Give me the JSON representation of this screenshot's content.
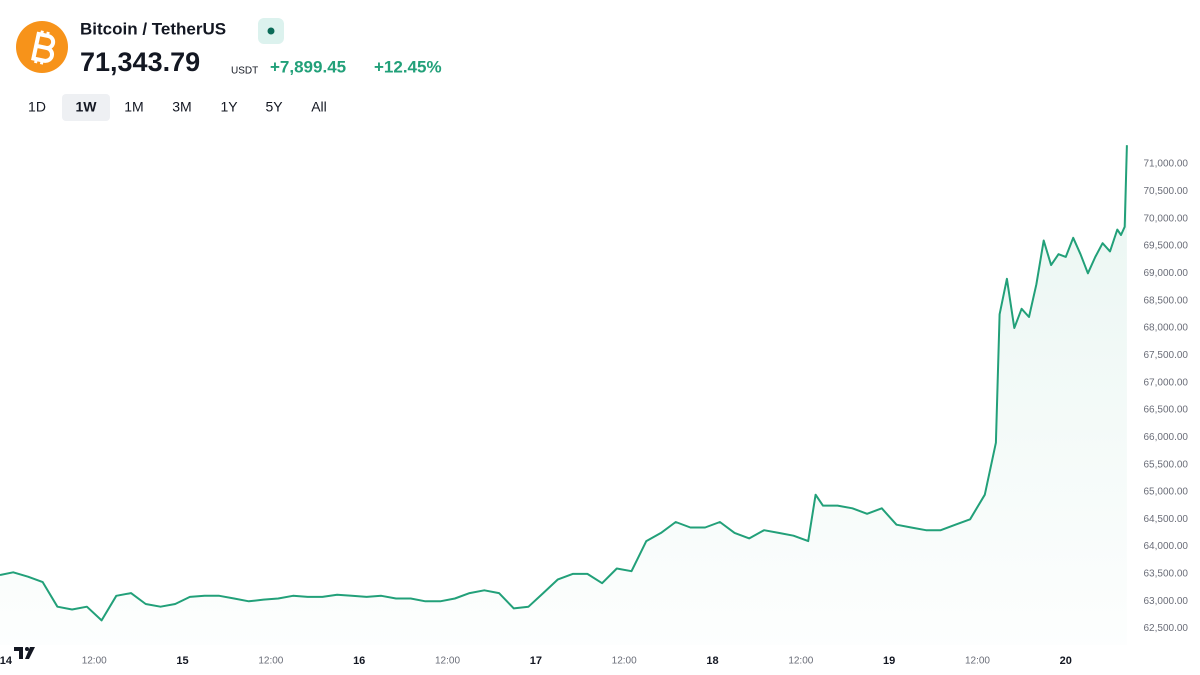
{
  "header": {
    "symbol": "Bitcoin / TetherUS",
    "price": "71,343.79",
    "currency": "USDT",
    "change": "+7,899.45",
    "change_percent": "+12.45%",
    "timeframes": [
      "1D",
      "1W",
      "1M",
      "3M",
      "1Y",
      "5Y",
      "All"
    ],
    "selected_timeframe": 1
  },
  "chart_data": {
    "type": "area",
    "color": "#22a079",
    "x": [
      -0.8,
      1,
      3,
      5,
      7,
      9,
      11,
      13,
      15,
      17,
      19,
      21,
      23,
      25,
      27,
      29,
      31,
      33,
      35,
      37,
      39,
      41,
      43,
      45,
      47,
      49,
      51,
      53,
      55,
      57,
      59,
      61,
      63,
      65,
      67,
      69,
      71,
      73,
      75,
      77,
      79,
      81,
      83,
      85,
      87,
      89,
      91,
      93,
      95,
      97,
      99,
      101,
      103,
      105,
      107,
      109,
      110,
      111,
      113,
      115,
      117,
      119,
      121,
      123,
      125,
      127,
      129,
      131,
      133,
      134.5,
      135,
      136,
      137,
      138,
      139,
      140,
      141,
      142,
      143,
      144,
      145,
      146,
      147,
      148,
      149,
      150,
      151,
      151.5,
      152,
      152.3
    ],
    "values": [
      63480,
      63530,
      63450,
      63350,
      62900,
      62850,
      62900,
      62650,
      63100,
      63150,
      62950,
      62900,
      62950,
      63080,
      63100,
      63100,
      63050,
      63000,
      63030,
      63050,
      63100,
      63080,
      63080,
      63120,
      63100,
      63080,
      63100,
      63050,
      63050,
      63000,
      63000,
      63050,
      63150,
      63200,
      63150,
      62870,
      62900,
      63150,
      63400,
      63500,
      63500,
      63330,
      63600,
      63550,
      64100,
      64250,
      64450,
      64350,
      64350,
      64450,
      64250,
      64150,
      64300,
      64250,
      64200,
      64100,
      64950,
      64750,
      64750,
      64700,
      64600,
      64700,
      64400,
      64350,
      64300,
      64300,
      64400,
      64500,
      64950,
      65900,
      68250,
      68900,
      68000,
      68350,
      68200,
      68800,
      69600,
      69150,
      69350,
      69300,
      69650,
      69350,
      69000,
      69300,
      69550,
      69400,
      69800,
      69700,
      69850,
      71343.79
    ],
    "xlim": [
      -0.8,
      153.4
    ],
    "xticks": [
      {
        "value": 0,
        "label": "14"
      },
      {
        "value": 12,
        "label": "12:00"
      },
      {
        "value": 24,
        "label": "15"
      },
      {
        "value": 36,
        "label": "12:00"
      },
      {
        "value": 48,
        "label": "16"
      },
      {
        "value": 60,
        "label": "12:00"
      },
      {
        "value": 72,
        "label": "17"
      },
      {
        "value": 84,
        "label": "12:00"
      },
      {
        "value": 96,
        "label": "18"
      },
      {
        "value": 108,
        "label": "12:00"
      },
      {
        "value": 120,
        "label": "19"
      },
      {
        "value": 132,
        "label": "12:00"
      },
      {
        "value": 144,
        "label": "20"
      }
    ],
    "ylim": [
      62200,
      71530
    ],
    "yticks": [
      {
        "value": 62500,
        "label": "62,500.00"
      },
      {
        "value": 63000,
        "label": "63,000.00"
      },
      {
        "value": 63500,
        "label": "63,500.00"
      },
      {
        "value": 64000,
        "label": "64,000.00"
      },
      {
        "value": 64500,
        "label": "64,500.00"
      },
      {
        "value": 65000,
        "label": "65,000.00"
      },
      {
        "value": 65500,
        "label": "65,500.00"
      },
      {
        "value": 66000,
        "label": "66,000.00"
      },
      {
        "value": 66500,
        "label": "66,500.00"
      },
      {
        "value": 67000,
        "label": "67,000.00"
      },
      {
        "value": 67500,
        "label": "67,500.00"
      },
      {
        "value": 68000,
        "label": "68,000.00"
      },
      {
        "value": 68500,
        "label": "68,500.00"
      },
      {
        "value": 69000,
        "label": "69,000.00"
      },
      {
        "value": 69500,
        "label": "69,500.00"
      },
      {
        "value": 70000,
        "label": "70,000.00"
      },
      {
        "value": 70500,
        "label": "70,500.00"
      },
      {
        "value": 71000,
        "label": "71,000.00"
      }
    ],
    "grid": false
  }
}
